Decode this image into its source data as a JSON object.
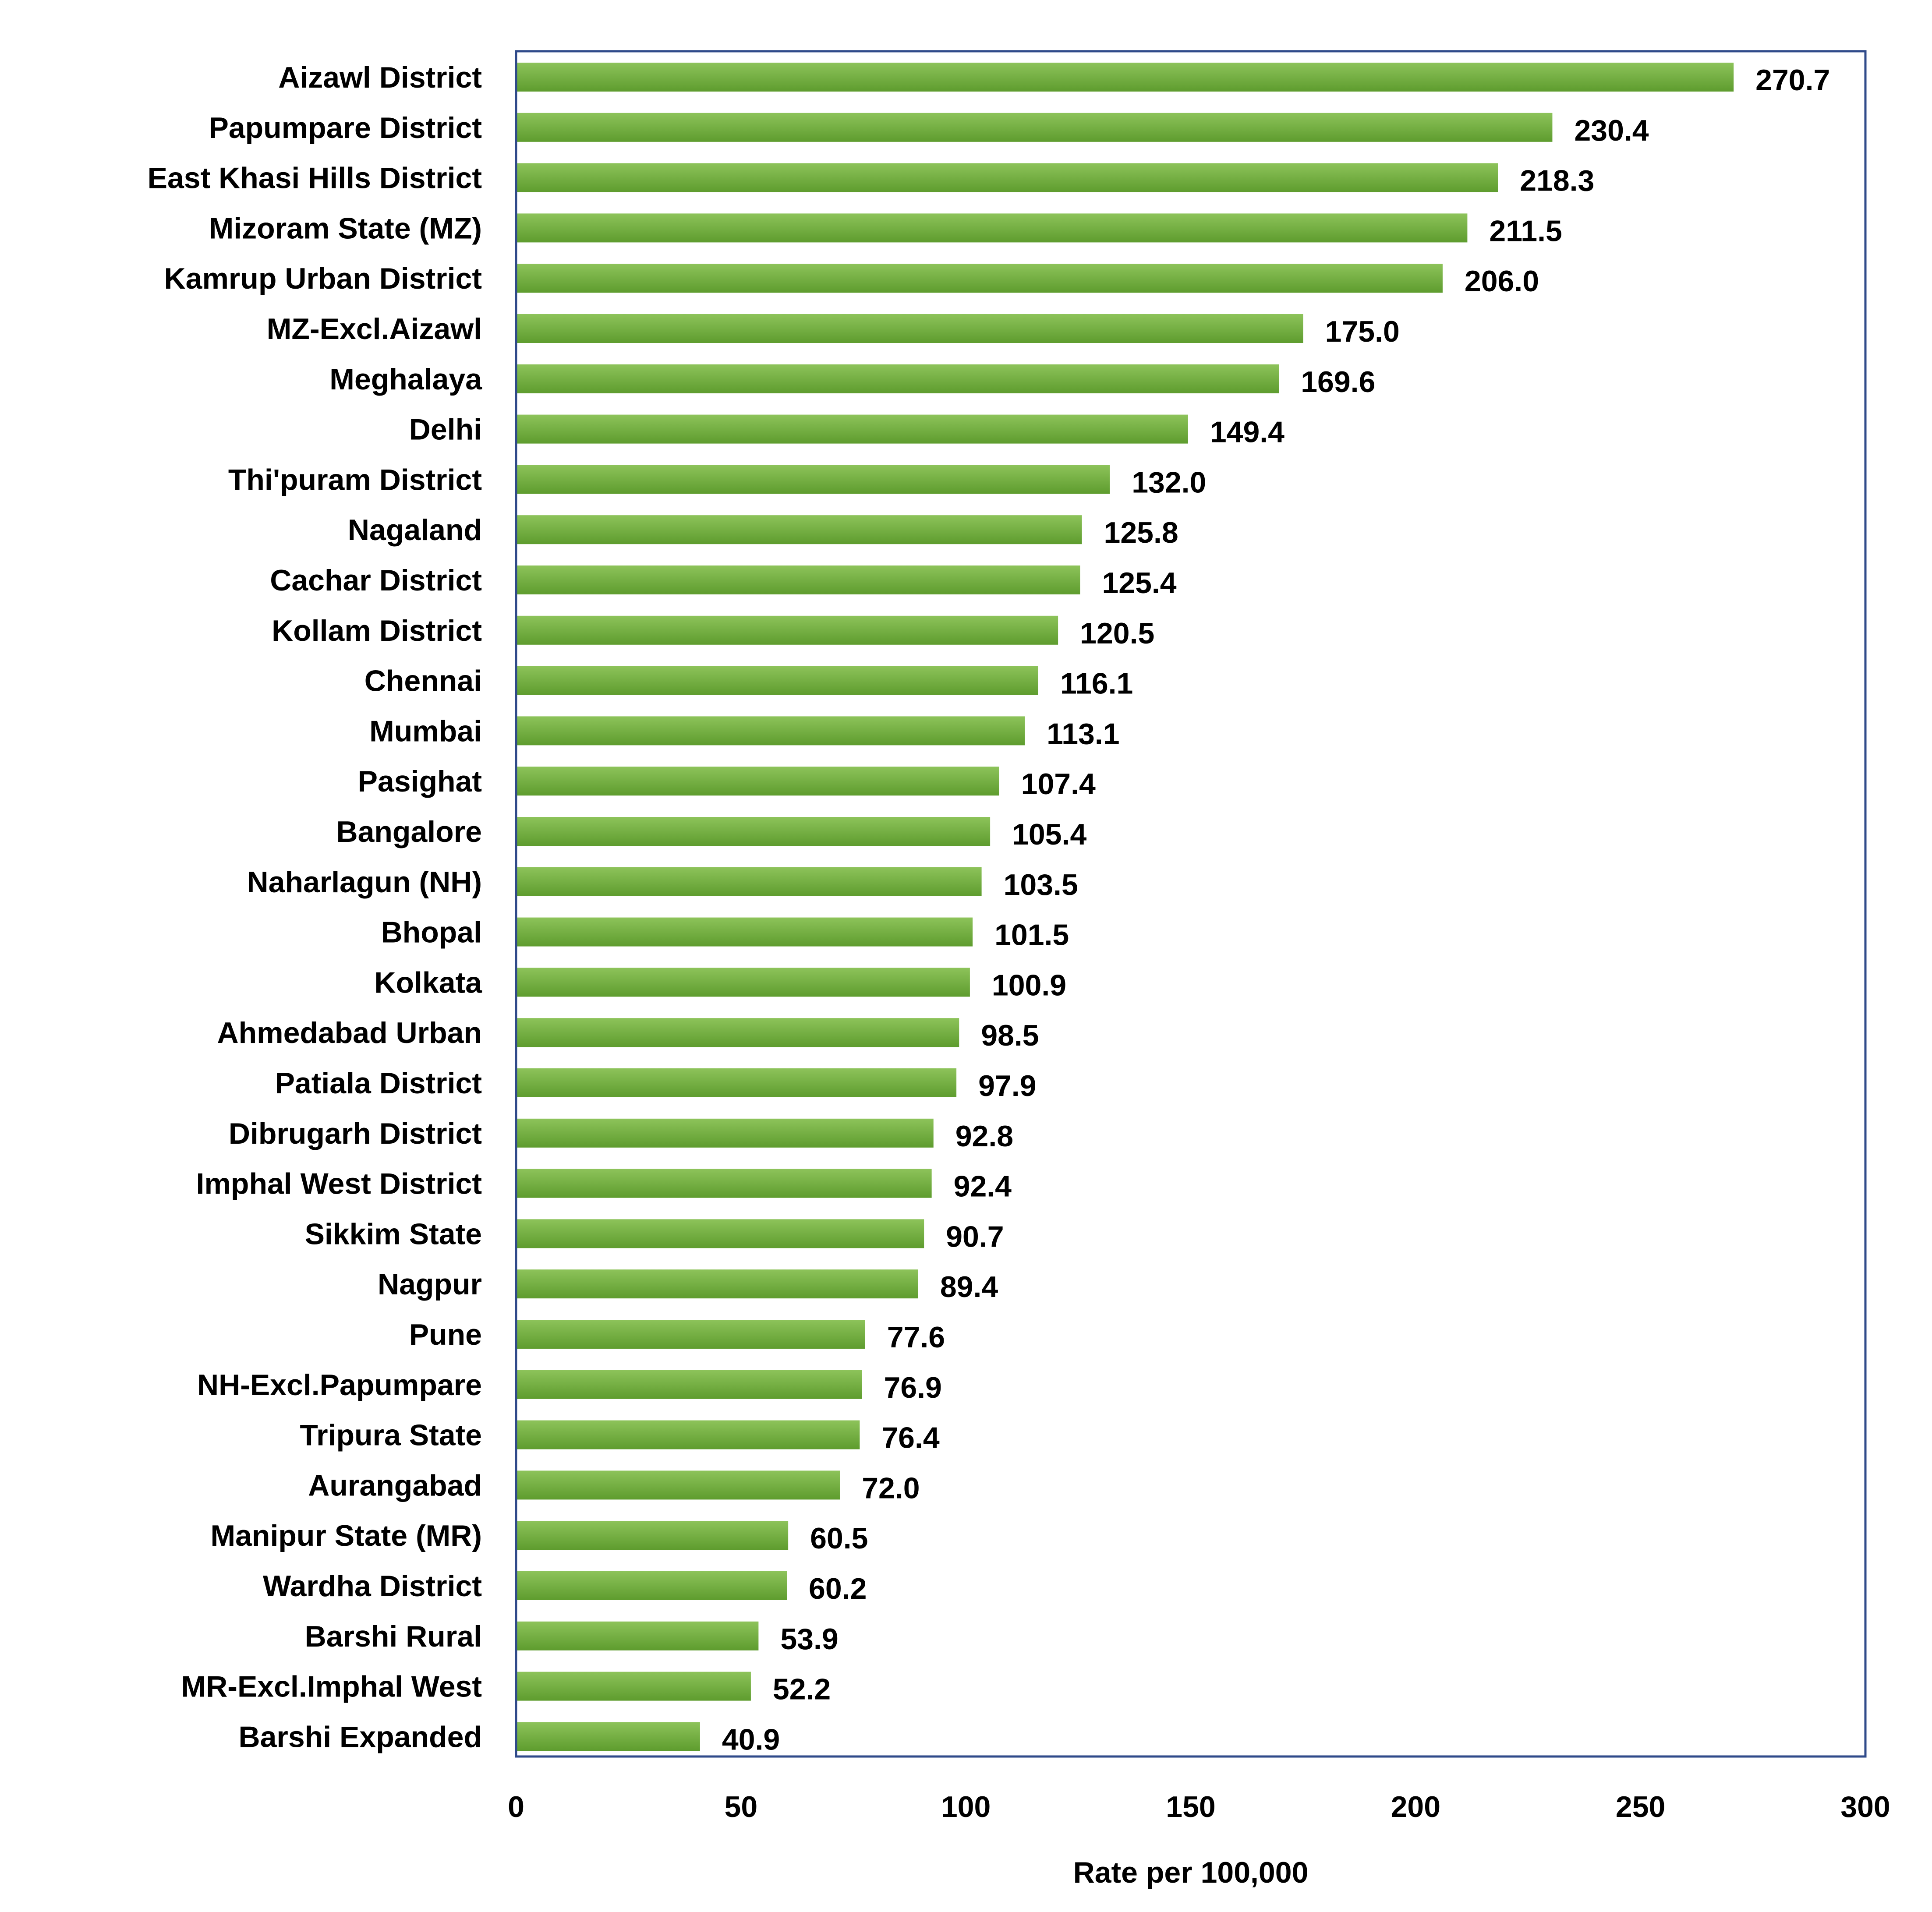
{
  "colors": {
    "bar_top": "#8DC35A",
    "bar_bottom": "#5E9C2E",
    "frame": "#2F4A8A",
    "text": "#000000",
    "background": "#ffffff"
  },
  "chart_data": {
    "type": "bar",
    "orientation": "horizontal",
    "title": "",
    "xlabel": "Rate per 100,000",
    "ylabel": "",
    "xlim": [
      0,
      300
    ],
    "xticks": [
      0,
      50,
      100,
      150,
      200,
      250,
      300
    ],
    "grid": false,
    "legend": "none",
    "data_labels": true,
    "categories": [
      "Aizawl District",
      "Papumpare District",
      "East Khasi Hills District",
      "Mizoram State (MZ)",
      "Kamrup Urban District",
      "MZ-Excl.Aizawl",
      "Meghalaya",
      "Delhi",
      "Thi'puram District",
      "Nagaland",
      "Cachar District",
      "Kollam District",
      "Chennai",
      "Mumbai",
      "Pasighat",
      "Bangalore",
      "Naharlagun (NH)",
      "Bhopal",
      "Kolkata",
      "Ahmedabad Urban",
      "Patiala District",
      "Dibrugarh District",
      "Imphal West District",
      "Sikkim State",
      "Nagpur",
      "Pune",
      "NH-Excl.Papumpare",
      "Tripura State",
      "Aurangabad",
      "Manipur State (MR)",
      "Wardha District",
      "Barshi Rural",
      "MR-Excl.Imphal West",
      "Barshi Expanded"
    ],
    "values": [
      270.7,
      230.4,
      218.3,
      211.5,
      206.0,
      175.0,
      169.6,
      149.4,
      132.0,
      125.8,
      125.4,
      120.5,
      116.1,
      113.1,
      107.4,
      105.4,
      103.5,
      101.5,
      100.9,
      98.5,
      97.9,
      92.8,
      92.4,
      90.7,
      89.4,
      77.6,
      76.9,
      76.4,
      72.0,
      60.5,
      60.2,
      53.9,
      52.2,
      40.9
    ],
    "value_labels": [
      "270.7",
      "230.4",
      "218.3",
      "211.5",
      "206.0",
      "175.0",
      "169.6",
      "149.4",
      "132.0",
      "125.8",
      "125.4",
      "120.5",
      "116.1",
      "113.1",
      "107.4",
      "105.4",
      "103.5",
      "101.5",
      "100.9",
      "98.5",
      "97.9",
      "92.8",
      "92.4",
      "90.7",
      "89.4",
      "77.6",
      "76.9",
      "76.4",
      "72.0",
      "60.5",
      "60.2",
      "53.9",
      "52.2",
      "40.9"
    ]
  }
}
